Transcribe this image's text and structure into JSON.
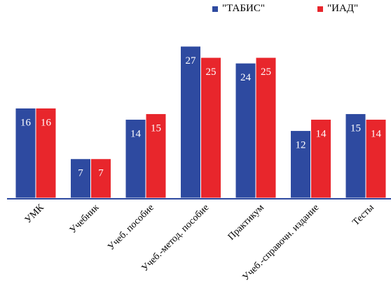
{
  "chart_data": {
    "type": "bar",
    "categories": [
      "УМК",
      "Учебник",
      "Учеб. пособие",
      "Учеб.-метод. пособие",
      "Практикум",
      "Учеб.-справочн. издание",
      "Тесты"
    ],
    "series": [
      {
        "name": "\"ТАБИС\"",
        "values": [
          16,
          7,
          14,
          27,
          24,
          12,
          15
        ],
        "color": "#2e4aa0"
      },
      {
        "name": "\"ИАД\"",
        "values": [
          16,
          7,
          15,
          25,
          25,
          14,
          14
        ],
        "color": "#e8262c"
      }
    ],
    "ylim": [
      0,
      27
    ],
    "title": "",
    "xlabel": "",
    "ylabel": "",
    "grid": false,
    "legend": "top",
    "data_labels": true,
    "label_color": "#ffffff",
    "axis_color": "#2e4aa0"
  }
}
